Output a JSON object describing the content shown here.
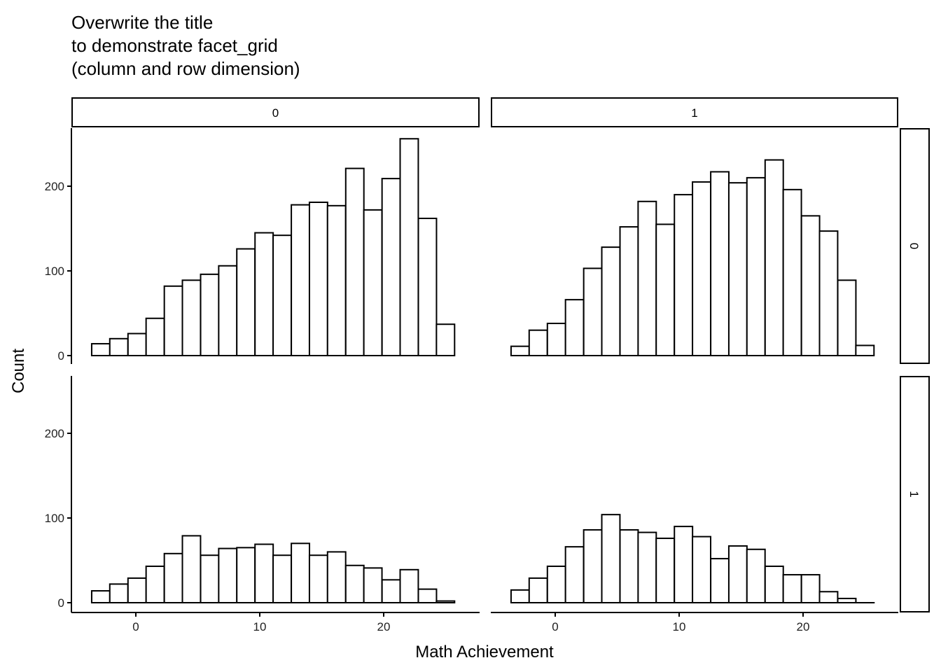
{
  "chart_data": {
    "type": "bar",
    "subtype": "histogram-facet-grid",
    "title": [
      "Overwrite the title",
      "to demonstrate facet_grid",
      "(column and row dimension)"
    ],
    "xlabel": "Math Achievement",
    "ylabel": "Count",
    "x_ticks": [
      0,
      10,
      20
    ],
    "y_ticks": [
      0,
      100,
      200
    ],
    "ylim": [
      0,
      265
    ],
    "grid": false,
    "bin_width": 1.4645,
    "bin_centers": [
      -2.83,
      -1.37,
      0.1,
      1.56,
      3.03,
      4.49,
      5.96,
      7.42,
      8.88,
      10.35,
      11.81,
      13.28,
      14.74,
      16.2,
      17.67,
      19.13,
      20.6,
      22.06,
      23.53,
      24.99
    ],
    "column_strips": [
      "0",
      "1"
    ],
    "row_strips": [
      "0",
      "1"
    ],
    "panels": [
      {
        "col": "0",
        "row": "0",
        "values": [
          14,
          20,
          26,
          44,
          82,
          89,
          96,
          106,
          126,
          145,
          142,
          178,
          181,
          177,
          221,
          172,
          209,
          256,
          162,
          37
        ]
      },
      {
        "col": "1",
        "row": "0",
        "values": [
          11,
          30,
          38,
          66,
          103,
          128,
          152,
          182,
          155,
          190,
          205,
          217,
          204,
          210,
          231,
          196,
          165,
          147,
          89,
          12
        ]
      },
      {
        "col": "0",
        "row": "1",
        "values": [
          14,
          22,
          29,
          43,
          58,
          79,
          56,
          64,
          65,
          69,
          56,
          70,
          56,
          60,
          44,
          41,
          27,
          39,
          16,
          2
        ]
      },
      {
        "col": "1",
        "row": "1",
        "values": [
          15,
          29,
          43,
          66,
          86,
          104,
          86,
          83,
          76,
          90,
          78,
          52,
          67,
          63,
          43,
          33,
          33,
          13,
          5,
          0
        ]
      }
    ],
    "colors": {
      "bar_fill": "#ffffff",
      "bar_stroke": "#000000"
    }
  }
}
